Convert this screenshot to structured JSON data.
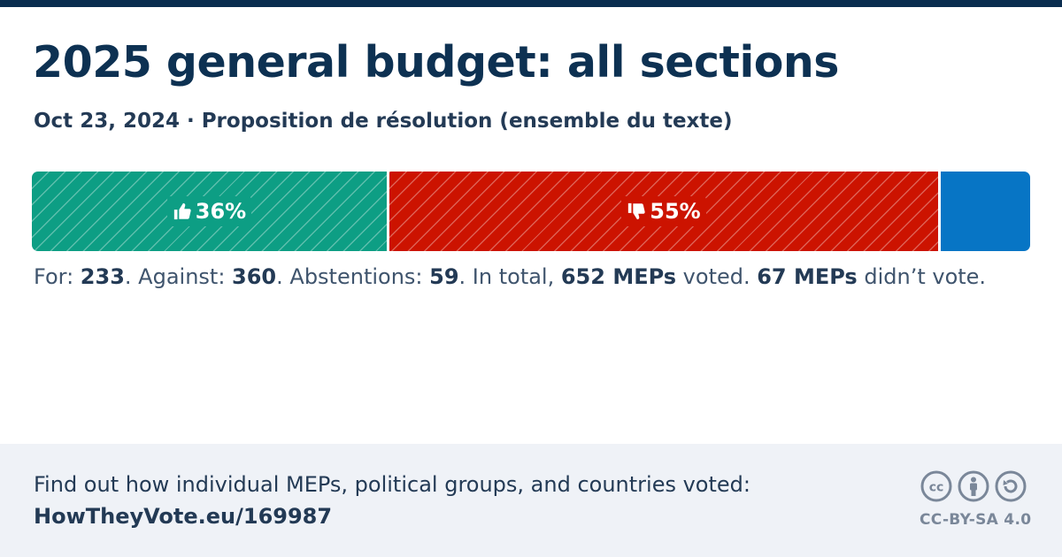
{
  "header": {
    "title": "2025 general budget: all sections",
    "subtitle": "Oct 23, 2024 · Proposition de résolution (ensemble du texte)"
  },
  "colors": {
    "for": "#0d9e84",
    "against": "#cc1300",
    "abstention": "#0775c5",
    "title": "#0d3152",
    "footer_bg": "#eff2f7"
  },
  "chart_data": {
    "type": "bar",
    "orientation": "horizontal-stacked",
    "categories": [
      "For",
      "Against",
      "Abstentions"
    ],
    "values": [
      233,
      360,
      59
    ],
    "percent_labels": [
      "36%",
      "55%",
      ""
    ],
    "icons": [
      "thumbs-up-icon",
      "thumbs-down-icon",
      ""
    ],
    "title": "2025 general budget: all sections",
    "total_voted": 652,
    "did_not_vote": 67
  },
  "summary": {
    "for_label": "For: ",
    "for_value": "233",
    "against_label": ". Against: ",
    "against_value": "360",
    "abst_label": ". Abstentions: ",
    "abst_value": "59",
    "total_label": ". In total, ",
    "total_value": "652 MEPs",
    "total_suffix": " voted. ",
    "absent_value": "67 MEPs",
    "absent_suffix": " didn’t vote."
  },
  "footer": {
    "text": "Find out how individual MEPs, political groups, and countries voted:",
    "link": "HowTheyVote.eu/169987",
    "license": "CC-BY-SA 4.0",
    "license_icons": [
      "cc-icon",
      "by-person-icon",
      "sa-share-alike-icon"
    ]
  }
}
